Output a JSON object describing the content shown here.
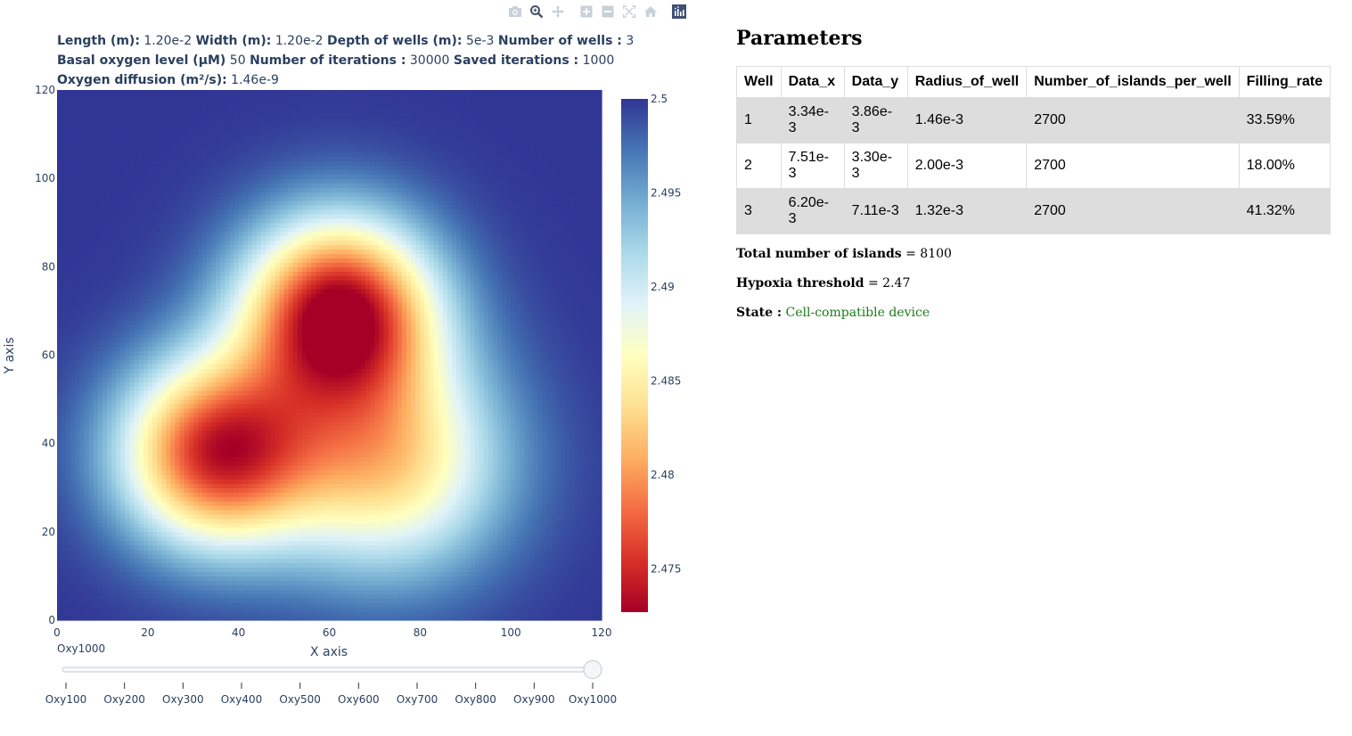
{
  "modebar": {
    "buttons": [
      {
        "name": "download-plot-button",
        "icon": "camera-icon",
        "label": "Download plot as a png"
      },
      {
        "name": "zoom-button",
        "icon": "zoom-icon",
        "label": "Zoom"
      },
      {
        "name": "pan-button",
        "icon": "pan-icon",
        "label": "Pan"
      },
      {
        "name": "zoom-in-button",
        "icon": "plus-square-icon",
        "label": "Zoom in"
      },
      {
        "name": "zoom-out-button",
        "icon": "minus-square-icon",
        "label": "Zoom out"
      },
      {
        "name": "autoscale-button",
        "icon": "autoscale-icon",
        "label": "Autoscale"
      },
      {
        "name": "reset-axes-button",
        "icon": "home-icon",
        "label": "Reset axes"
      },
      {
        "name": "plotly-logo-button",
        "icon": "plotly-logo-icon",
        "label": "Produced with Plotly"
      }
    ]
  },
  "params": {
    "length_label": "Length (m):",
    "length_value": "1.20e-2",
    "width_label": "Width (m):",
    "width_value": "1.20e-2",
    "depth_label": "Depth of wells (m):",
    "depth_value": "5e-3",
    "nwells_label": "Number of wells :",
    "nwells_value": "3",
    "basal_label": "Basal oxygen level (µM)",
    "basal_value": "50",
    "iter_label": "Number of iterations :",
    "iter_value": "30000",
    "saved_label": "Saved iterations :",
    "saved_value": "1000",
    "diff_label": "Oxygen diffusion (m²/s):",
    "diff_value": "1.46e-9"
  },
  "chart_data": {
    "type": "heatmap",
    "xlabel": "X axis",
    "ylabel": "Y axis",
    "xlim": [
      0,
      120
    ],
    "ylim": [
      0,
      120
    ],
    "x_ticks": [
      "0",
      "20",
      "40",
      "60",
      "80",
      "100",
      "120"
    ],
    "y_ticks": [
      "0",
      "20",
      "40",
      "60",
      "80",
      "100",
      "120"
    ],
    "zlim": [
      2.4727,
      2.5
    ],
    "colorbar_ticks": [
      "2.475",
      "2.48",
      "2.485",
      "2.49",
      "2.495",
      "2.5"
    ],
    "colorbar_tick_values": [
      2.475,
      2.48,
      2.485,
      2.49,
      2.495,
      2.5
    ],
    "colorscale": "RdYlBu",
    "colorscale_stops": [
      "#a50026",
      "#d73027",
      "#f46d43",
      "#fdae61",
      "#fee090",
      "#ffffbf",
      "#e0f3f8",
      "#abd9e9",
      "#74add1",
      "#4575b4",
      "#313695"
    ],
    "sources": [
      {
        "x": 62,
        "y": 70,
        "min_value": 2.4727,
        "radius": 15
      },
      {
        "x": 35,
        "y": 38,
        "min_value": 2.4755,
        "radius": 15
      },
      {
        "x": 73,
        "y": 36,
        "min_value": 2.4835,
        "radius": 18
      }
    ]
  },
  "slider": {
    "current_label": "Oxy1000",
    "steps": [
      "Oxy100",
      "Oxy200",
      "Oxy300",
      "Oxy400",
      "Oxy500",
      "Oxy600",
      "Oxy700",
      "Oxy800",
      "Oxy900",
      "Oxy1000"
    ],
    "active_index": 9
  },
  "right": {
    "title": "Parameters",
    "table": {
      "headers": [
        "Well",
        "Data_x",
        "Data_y",
        "Radius_of_well",
        "Number_of_islands_per_well",
        "Filling_rate"
      ],
      "rows": [
        [
          "1",
          "3.34e-3",
          "3.86e-3",
          "1.46e-3",
          "2700",
          "33.59%"
        ],
        [
          "2",
          "7.51e-3",
          "3.30e-3",
          "2.00e-3",
          "2700",
          "18.00%"
        ],
        [
          "3",
          "6.20e-3",
          "7.11e-3",
          "1.32e-3",
          "2700",
          "41.32%"
        ]
      ]
    },
    "total_label": "Total number of islands",
    "total_value": "= 8100",
    "hypoxia_label": "Hypoxia threshold",
    "hypoxia_value": "= 2.47",
    "state_label": "State :",
    "state_value": "Cell-compatible device",
    "state_color": "#1a7a1a"
  }
}
